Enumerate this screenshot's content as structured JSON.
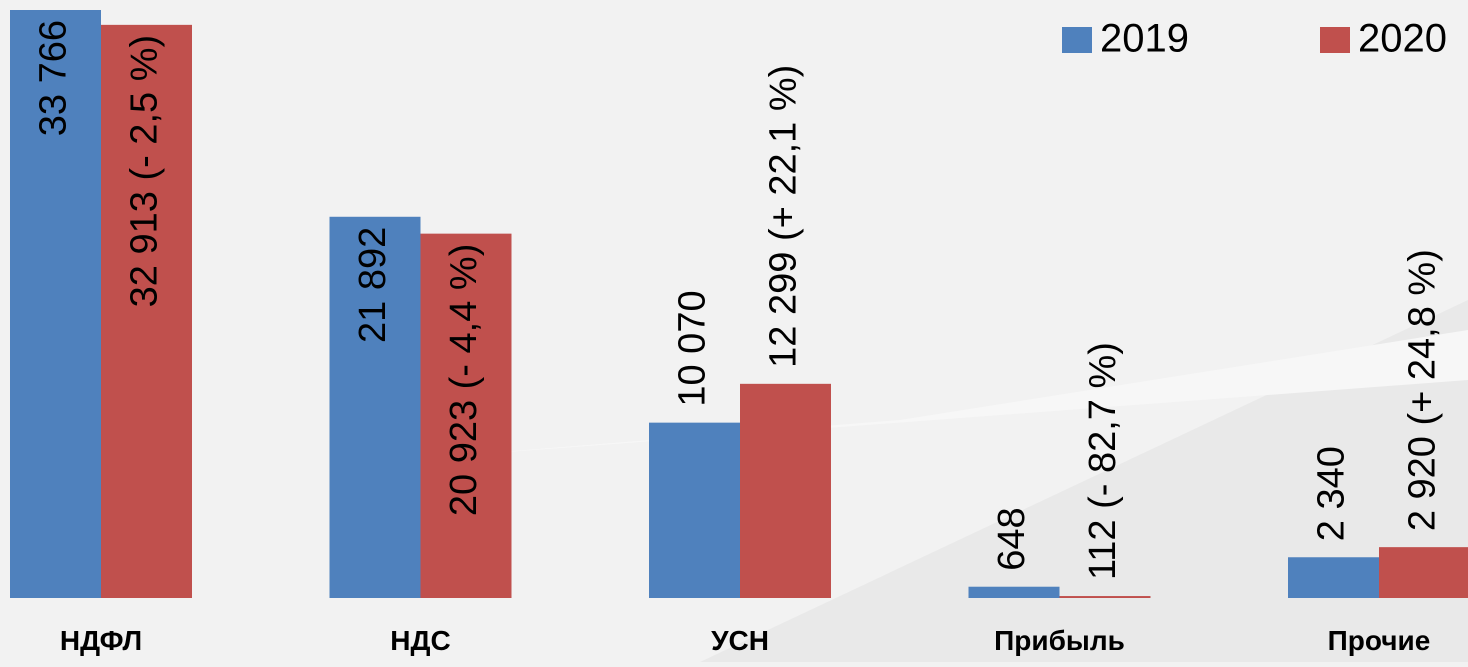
{
  "chart_data": {
    "type": "bar",
    "categories": [
      "НДФЛ",
      "НДС",
      "УСН",
      "Прибыль",
      "Прочие"
    ],
    "series": [
      {
        "name": "2019",
        "color": "#4f81bd",
        "values": [
          33766,
          21892,
          10070,
          648,
          2340
        ],
        "value_labels": [
          "33 766",
          "21 892",
          "10 070",
          "648",
          "2 340"
        ]
      },
      {
        "name": "2020",
        "color": "#c0504d",
        "values": [
          32913,
          20923,
          12299,
          112,
          2920
        ],
        "value_labels": [
          "32 913 (- 2,5 %)",
          "20 923 (- 4,4 %)",
          "12 299 (+ 22,1 %)",
          "112 (- 82,7 %)",
          "2 920 (+ 24,8 %)"
        ]
      }
    ],
    "legend": "top-right"
  }
}
